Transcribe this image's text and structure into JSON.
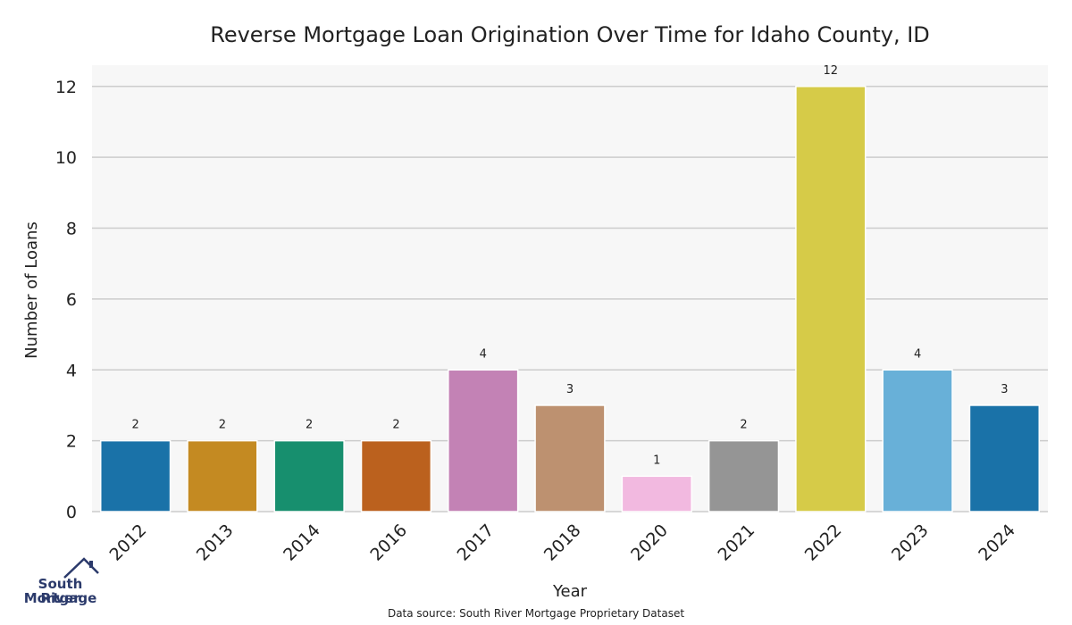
{
  "chart_data": {
    "type": "bar",
    "title": "Reverse Mortgage Loan Origination Over Time for Idaho County, ID",
    "xlabel": "Year",
    "ylabel": "Number of Loans",
    "categories": [
      "2012",
      "2013",
      "2014",
      "2016",
      "2017",
      "2018",
      "2020",
      "2021",
      "2022",
      "2023",
      "2024"
    ],
    "values": [
      2,
      2,
      2,
      2,
      4,
      3,
      1,
      2,
      12,
      4,
      3
    ],
    "colors": [
      "#1a72a8",
      "#c48a22",
      "#178f6e",
      "#bb611e",
      "#c382b5",
      "#bd9170",
      "#f2b9e0",
      "#959595",
      "#d6cb48",
      "#68b0d8",
      "#1a72a8"
    ],
    "ylim": [
      0,
      12.6
    ],
    "yticks": [
      0,
      2,
      4,
      6,
      8,
      10,
      12
    ],
    "grid": true,
    "plot_background": "#f7f7f7",
    "grid_color": "#cccccc"
  },
  "source": "Data source: South River Mortgage Proprietary Dataset",
  "logo": {
    "line1": "South River",
    "line2": "Mortgage",
    "icon": "house-roof-icon",
    "color": "#2b3a6b"
  }
}
